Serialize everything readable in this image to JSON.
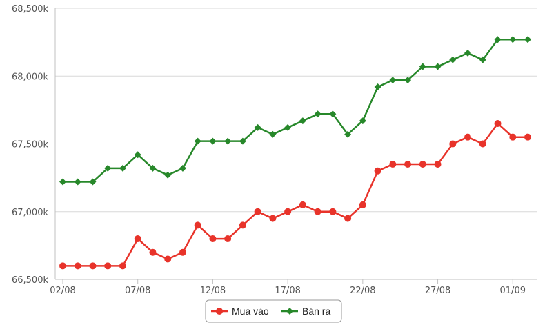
{
  "chart_data": {
    "type": "line",
    "title": "",
    "xlabel": "",
    "ylabel": "",
    "ylim": [
      66500,
      68500
    ],
    "yticks": [
      66500,
      67000,
      67500,
      68000,
      68500
    ],
    "ytick_labels": [
      "66,500k",
      "67,000k",
      "67,500k",
      "68,000k",
      "68,500k"
    ],
    "grid": "horizontal",
    "legend_position": "bottom-center",
    "categories": [
      "02/08",
      "03/08",
      "04/08",
      "05/08",
      "06/08",
      "07/08",
      "08/08",
      "09/08",
      "10/08",
      "11/08",
      "12/08",
      "13/08",
      "14/08",
      "15/08",
      "16/08",
      "17/08",
      "18/08",
      "19/08",
      "20/08",
      "21/08",
      "22/08",
      "23/08",
      "24/08",
      "25/08",
      "26/08",
      "27/08",
      "28/08",
      "29/08",
      "30/08",
      "31/08",
      "01/09",
      "02/09"
    ],
    "xtick_labels": [
      {
        "index": 0,
        "label": "02/08"
      },
      {
        "index": 5,
        "label": "07/08"
      },
      {
        "index": 10,
        "label": "12/08"
      },
      {
        "index": 15,
        "label": "17/08"
      },
      {
        "index": 20,
        "label": "22/08"
      },
      {
        "index": 25,
        "label": "27/08"
      },
      {
        "index": 30,
        "label": "01/09"
      }
    ],
    "series": [
      {
        "name": "Mua vào",
        "color": "#e8332a",
        "marker": "circle",
        "values": [
          66600,
          66600,
          66600,
          66600,
          66600,
          66800,
          66700,
          66650,
          66700,
          66900,
          66800,
          66800,
          66900,
          67000,
          66950,
          67000,
          67050,
          67000,
          67000,
          66950,
          67050,
          67300,
          67350,
          67350,
          67350,
          67350,
          67500,
          67550,
          67500,
          67650,
          67550,
          67550
        ]
      },
      {
        "name": "Bán ra",
        "color": "#27882a",
        "marker": "diamond",
        "values": [
          67220,
          67220,
          67220,
          67320,
          67320,
          67420,
          67320,
          67270,
          67320,
          67520,
          67520,
          67520,
          67520,
          67620,
          67570,
          67620,
          67670,
          67720,
          67720,
          67570,
          67670,
          67920,
          67970,
          67970,
          68070,
          68070,
          68120,
          68170,
          68120,
          68270,
          68270,
          68270
        ]
      }
    ]
  }
}
